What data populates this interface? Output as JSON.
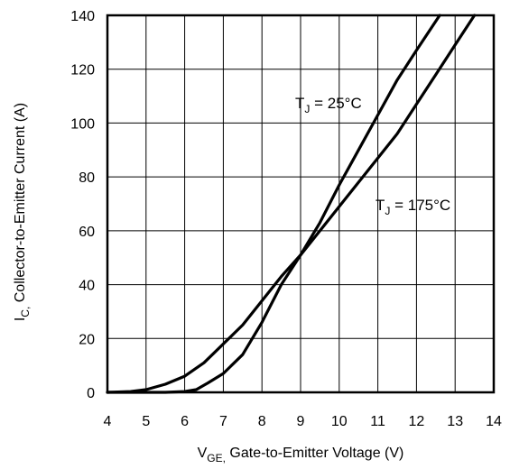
{
  "chart_data": {
    "type": "line",
    "xlabel": {
      "main": "V",
      "sub": "GE,",
      "rest": " Gate-to-Emitter Voltage (V)"
    },
    "ylabel": {
      "main": "I",
      "sub": "C,",
      "rest": " Collector-to-Emitter Current  (A)"
    },
    "xlim": [
      4,
      14
    ],
    "ylim": [
      0,
      140
    ],
    "x_ticks": [
      "4",
      "5",
      "6",
      "7",
      "8",
      "9",
      "10",
      "11",
      "12",
      "13",
      "14"
    ],
    "y_ticks": [
      "0",
      "20",
      "40",
      "60",
      "80",
      "100",
      "120",
      "140"
    ],
    "grid": true,
    "series": [
      {
        "name": "TJ = 25°C",
        "label_main": "T",
        "label_sub": "J",
        "label_rest": " = 25°C",
        "points": [
          [
            4,
            0
          ],
          [
            5.5,
            0
          ],
          [
            6,
            0.3
          ],
          [
            6.3,
            1
          ],
          [
            6.6,
            3.5
          ],
          [
            7,
            7
          ],
          [
            7.5,
            14
          ],
          [
            8,
            26
          ],
          [
            8.5,
            40
          ],
          [
            9,
            51
          ],
          [
            9.5,
            63
          ],
          [
            10,
            77
          ],
          [
            10.5,
            90
          ],
          [
            11,
            103
          ],
          [
            11.5,
            116
          ],
          [
            12,
            127
          ],
          [
            12.6,
            140
          ]
        ]
      },
      {
        "name": "TJ = 175°C",
        "label_main": "T",
        "label_sub": "J",
        "label_rest": " = 175°C",
        "points": [
          [
            4,
            0
          ],
          [
            4.6,
            0.3
          ],
          [
            5,
            1
          ],
          [
            5.5,
            3
          ],
          [
            6,
            6
          ],
          [
            6.5,
            11
          ],
          [
            7,
            18
          ],
          [
            7.5,
            25
          ],
          [
            8,
            34
          ],
          [
            8.5,
            43
          ],
          [
            9,
            51
          ],
          [
            9.5,
            60
          ],
          [
            10,
            69
          ],
          [
            10.5,
            78
          ],
          [
            11,
            87
          ],
          [
            11.5,
            96
          ],
          [
            12,
            107
          ],
          [
            12.5,
            118
          ],
          [
            13,
            129
          ],
          [
            13.5,
            140
          ]
        ]
      }
    ]
  }
}
